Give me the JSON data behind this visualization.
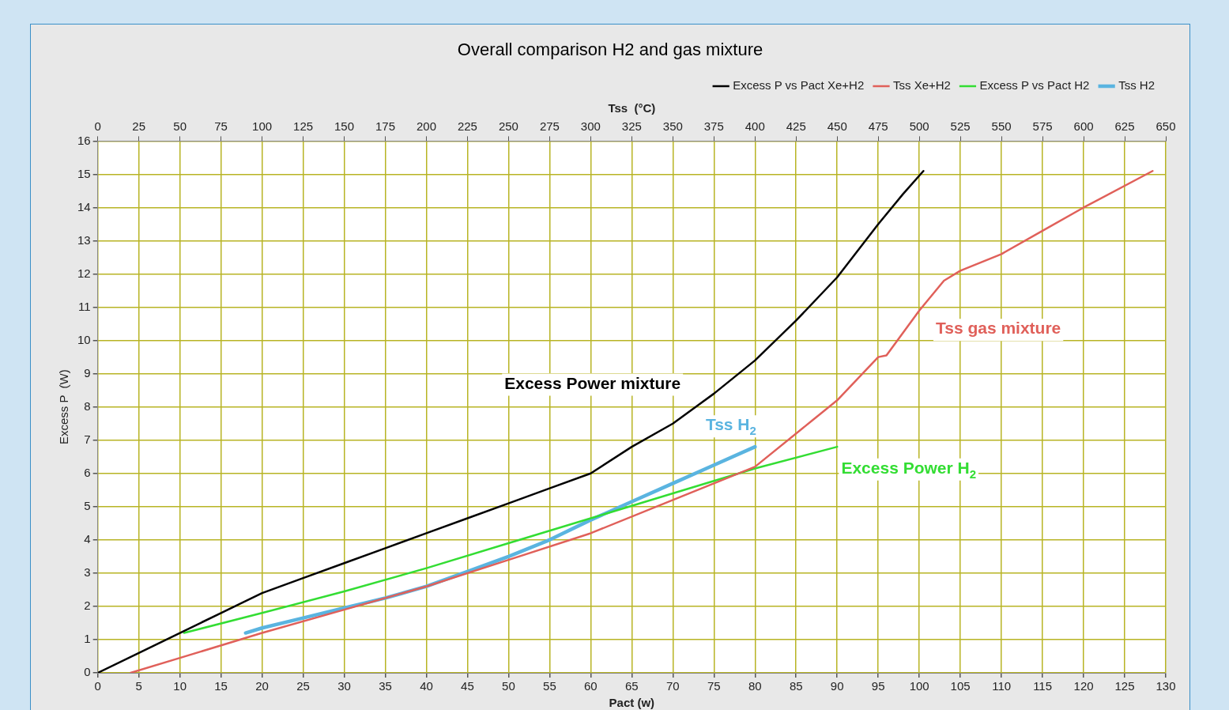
{
  "chart_data": {
    "type": "line",
    "title": "Overall comparison H2 and gas mixture",
    "xlabel": "Pact (w)",
    "x2label": "Tss  (°C)",
    "ylabel": "Excess P  (W)",
    "xlim": [
      0,
      130
    ],
    "xticks": [
      0,
      5,
      10,
      15,
      20,
      25,
      30,
      35,
      40,
      45,
      50,
      55,
      60,
      65,
      70,
      75,
      80,
      85,
      90,
      95,
      100,
      105,
      110,
      115,
      120,
      125,
      130
    ],
    "x2lim": [
      0,
      650
    ],
    "x2ticks": [
      0,
      25,
      50,
      75,
      100,
      125,
      150,
      175,
      200,
      225,
      250,
      275,
      300,
      325,
      350,
      375,
      400,
      425,
      450,
      475,
      500,
      525,
      550,
      575,
      600,
      625,
      650
    ],
    "ylim": [
      0,
      16
    ],
    "yticks": [
      0,
      1,
      2,
      3,
      4,
      5,
      6,
      7,
      8,
      9,
      10,
      11,
      12,
      13,
      14,
      15,
      16
    ],
    "grid": true,
    "legend": "top right",
    "marker": "none",
    "line_style": "solid",
    "series": [
      {
        "name": "Excess P vs Pact Xe+H2",
        "color": "#000000",
        "x": [
          0,
          5,
          10,
          15,
          20,
          25,
          30,
          35,
          40,
          45,
          50,
          55,
          60,
          65,
          70,
          75,
          80,
          85,
          90,
          95,
          98,
          100.5
        ],
        "values": [
          0,
          0.6,
          1.2,
          1.8,
          2.4,
          2.85,
          3.3,
          3.75,
          4.2,
          4.65,
          5.1,
          5.55,
          6.0,
          6.8,
          7.5,
          8.4,
          9.4,
          10.6,
          11.9,
          13.5,
          14.4,
          15.1
        ]
      },
      {
        "name": "Tss Xe+H2",
        "color": "#e0605a",
        "axis": "x2",
        "x": [
          20,
          50,
          100,
          150,
          200,
          250,
          300,
          350,
          400,
          435,
          450,
          475,
          480,
          500,
          515,
          525,
          550,
          575,
          600,
          642
        ],
        "values": [
          0,
          0.45,
          1.2,
          1.9,
          2.6,
          3.4,
          4.2,
          5.2,
          6.2,
          7.6,
          8.2,
          9.5,
          9.55,
          10.9,
          11.8,
          12.1,
          12.6,
          13.3,
          14.0,
          15.1
        ]
      },
      {
        "name": "Excess P vs Pact H2",
        "color": "#33dd33",
        "x": [
          10.5,
          20,
          30,
          40,
          50,
          60,
          70,
          80,
          90
        ],
        "values": [
          1.2,
          1.8,
          2.45,
          3.15,
          3.9,
          4.65,
          5.4,
          6.15,
          6.8
        ]
      },
      {
        "name": "Tss H2",
        "color": "#5ab4e0",
        "axis": "x2",
        "x": [
          90,
          100,
          125,
          150,
          175,
          200,
          225,
          250,
          275,
          300,
          325,
          350,
          375,
          400
        ],
        "values": [
          1.2,
          1.35,
          1.65,
          1.95,
          2.25,
          2.6,
          3.05,
          3.5,
          4.0,
          4.6,
          5.15,
          5.7,
          6.25,
          6.8
        ]
      }
    ],
    "annotations": [
      "Excess Power mixture",
      "Tss gas mixture",
      "Tss H$_{2}$",
      "Excess Power H$_{2}$"
    ]
  }
}
